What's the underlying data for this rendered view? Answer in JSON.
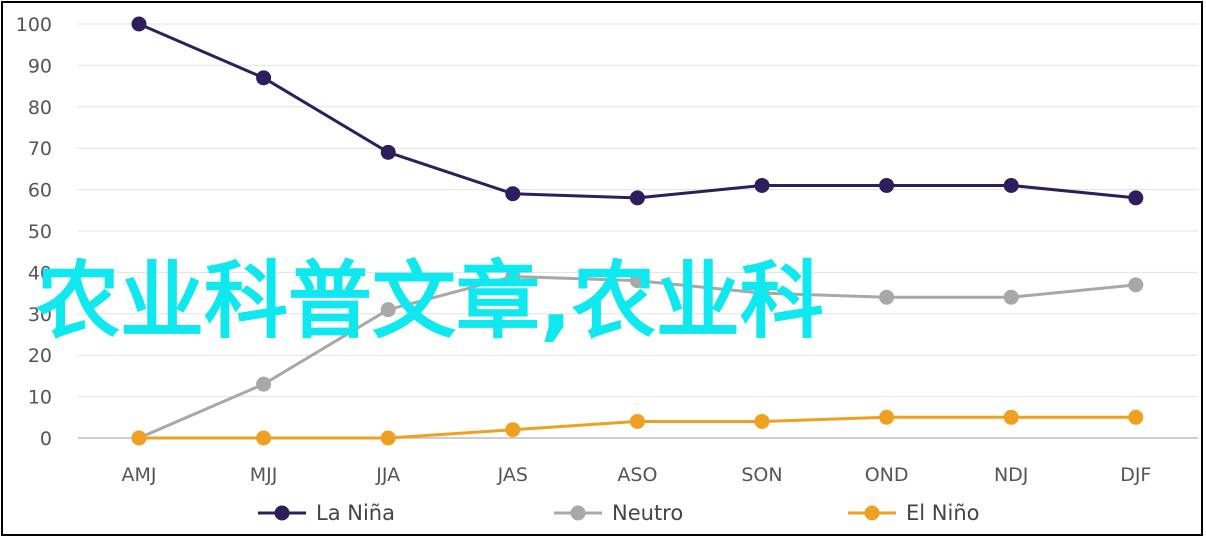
{
  "chart_data": {
    "type": "line",
    "categories": [
      "AMJ",
      "MJJ",
      "JJA",
      "JAS",
      "ASO",
      "SON",
      "OND",
      "NDJ",
      "DJF"
    ],
    "series": [
      {
        "name": "La Niña",
        "color": "#2d1f5e",
        "values": [
          100,
          87,
          69,
          59,
          58,
          61,
          61,
          61,
          58
        ]
      },
      {
        "name": "Neutro",
        "color": "#a8a8a8",
        "values": [
          0,
          13,
          31,
          39,
          38,
          35,
          34,
          34,
          37
        ]
      },
      {
        "name": "El Niño",
        "color": "#f0a020",
        "values": [
          0,
          0,
          0,
          2,
          4,
          4,
          5,
          5,
          5
        ]
      }
    ],
    "yticks": [
      0,
      10,
      20,
      30,
      40,
      50,
      60,
      70,
      80,
      90,
      100
    ],
    "ylim": [
      0,
      100
    ],
    "grid": true,
    "legend_position": "bottom",
    "overlay_text": "农业科普文章,农业科"
  }
}
